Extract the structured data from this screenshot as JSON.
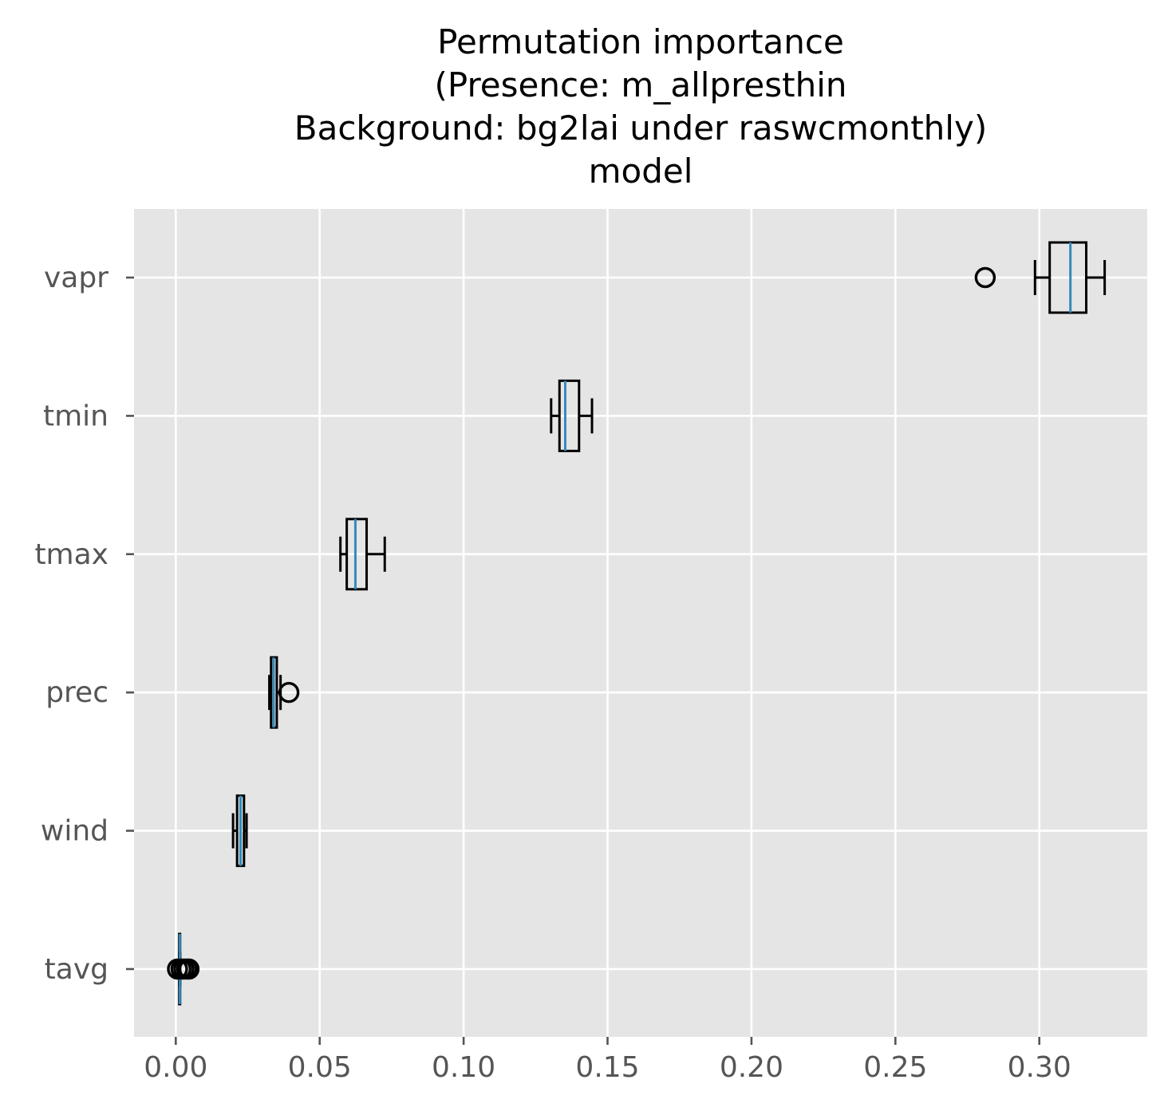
{
  "chart_data": {
    "type": "boxplot",
    "orientation": "horizontal",
    "title_lines": [
      "Permutation importance",
      "(Presence: m_allpresthin",
      "Background: bg2lai under raswcmonthly)",
      "model"
    ],
    "xlabel": "",
    "ylabel": "",
    "xlim": [
      -0.0145,
      0.3375
    ],
    "xticks": [
      0.0,
      0.05,
      0.1,
      0.15,
      0.2,
      0.25,
      0.3
    ],
    "xtick_labels": [
      "0.00",
      "0.05",
      "0.10",
      "0.15",
      "0.20",
      "0.25",
      "0.30"
    ],
    "grid": true,
    "style": "ggplot",
    "colors": {
      "background": "#e5e5e5",
      "grid": "#ffffff",
      "box_edge": "#000000",
      "median": "#348abd",
      "tick_label": "#555555"
    },
    "series": [
      {
        "name": "vapr",
        "whisker_low": 0.2985,
        "q1": 0.3036,
        "median": 0.3108,
        "q3": 0.3163,
        "whisker_high": 0.3227,
        "outliers": [
          0.2812
        ]
      },
      {
        "name": "tmin",
        "whisker_low": 0.1304,
        "q1": 0.1333,
        "median": 0.1353,
        "q3": 0.1401,
        "whisker_high": 0.1446,
        "outliers": []
      },
      {
        "name": "tmax",
        "whisker_low": 0.0572,
        "q1": 0.0594,
        "median": 0.0624,
        "q3": 0.0663,
        "whisker_high": 0.0726,
        "outliers": []
      },
      {
        "name": "prec",
        "whisker_low": 0.0325,
        "q1": 0.0331,
        "median": 0.034,
        "q3": 0.0351,
        "whisker_high": 0.0364,
        "outliers": [
          0.0393
        ]
      },
      {
        "name": "wind",
        "whisker_low": 0.0199,
        "q1": 0.0213,
        "median": 0.0225,
        "q3": 0.0237,
        "whisker_high": 0.0246,
        "outliers": []
      },
      {
        "name": "tavg",
        "whisker_low": 0.0012,
        "q1": 0.0012,
        "median": 0.0014,
        "q3": 0.0015,
        "whisker_high": 0.0015,
        "outliers": [
          0.0006,
          0.0018,
          0.0028,
          0.0038,
          0.0046
        ]
      }
    ]
  }
}
